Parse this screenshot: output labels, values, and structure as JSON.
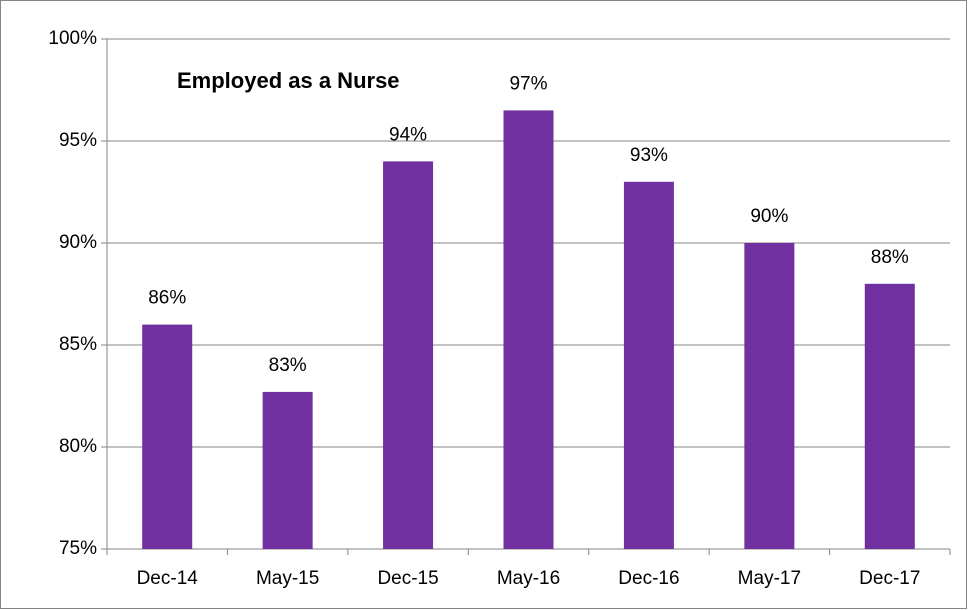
{
  "chart_data": {
    "type": "bar",
    "title": "Employed as a Nurse",
    "categories": [
      "Dec-14",
      "May-15",
      "Dec-15",
      "May-16",
      "Dec-16",
      "May-17",
      "Dec-17"
    ],
    "values": [
      86,
      82.7,
      94,
      96.5,
      93,
      90,
      88
    ],
    "value_labels": [
      "86%",
      "83%",
      "94%",
      "97%",
      "93%",
      "90%",
      "88%"
    ],
    "color": "#7030a0",
    "ylim": [
      75,
      100
    ],
    "yticks": [
      {
        "value": 75,
        "label": "75%"
      },
      {
        "value": 80,
        "label": "80%"
      },
      {
        "value": 85,
        "label": "85%"
      },
      {
        "value": 90,
        "label": "90%"
      },
      {
        "value": 95,
        "label": "95%"
      },
      {
        "value": 100,
        "label": "100%"
      }
    ],
    "grid": true
  }
}
